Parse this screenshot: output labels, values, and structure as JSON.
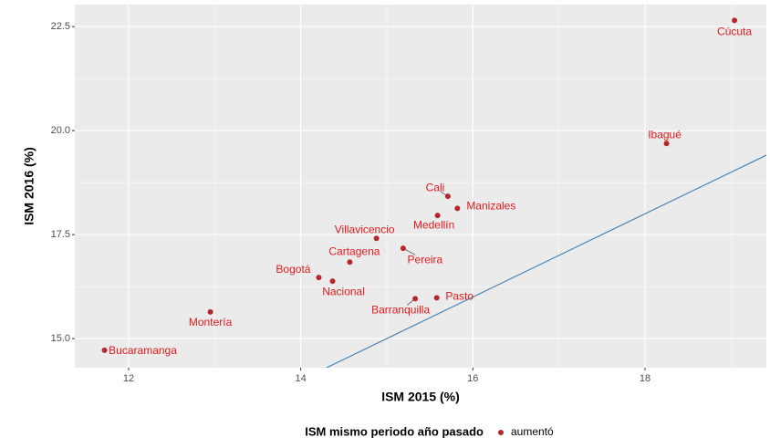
{
  "chart_data": {
    "type": "scatter",
    "xlabel": "ISM 2015 (%)",
    "ylabel": "ISM 2016 (%)",
    "legend_title": "ISM mismo periodo año pasado",
    "legend_position": "bottom",
    "grid": true,
    "label_color": "#e41a1c",
    "x": [
      19.04,
      18.25,
      15.71,
      15.82,
      15.59,
      14.88,
      15.19,
      14.57,
      14.21,
      14.37,
      15.58,
      15.33,
      12.95,
      11.72
    ],
    "series": [
      {
        "name": "aumentó",
        "color": "#b5272d",
        "values": [
          22.65,
          19.69,
          18.42,
          18.13,
          17.96,
          17.41,
          17.17,
          16.84,
          16.47,
          16.38,
          15.98,
          15.96,
          15.64,
          14.72
        ],
        "labels": [
          "Cúcuta",
          "Ibagué",
          "Cali",
          "Manizales",
          "Medellín",
          "Villavicencio",
          "Pereira",
          "Cartagena",
          "Bogotá",
          "Nacional",
          "Pasto",
          "Barranquilla",
          "Montería",
          "Bucaramanga"
        ]
      }
    ],
    "xlim": [
      11.375,
      19.41
    ],
    "ylim": [
      14.3,
      23.03
    ],
    "xticks": [
      12,
      14,
      16,
      18
    ],
    "yticks": [
      {
        "value": 15,
        "label": "15.0"
      },
      17.5,
      {
        "value": 20,
        "label": "20.0"
      },
      22.5
    ]
  }
}
